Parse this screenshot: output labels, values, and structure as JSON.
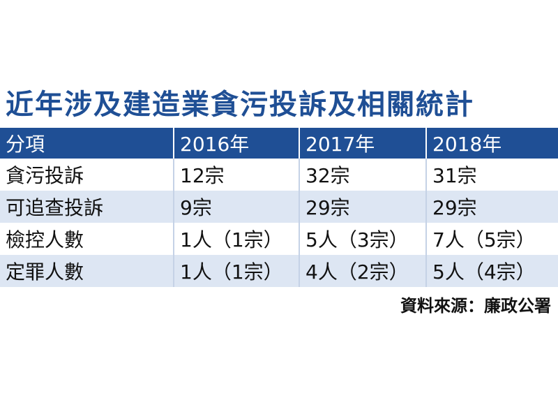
{
  "title": "近年涉及建造業貪污投訴及相關統計",
  "table": {
    "headers": [
      "分項",
      "2016年",
      "2017年",
      "2018年"
    ],
    "rows": [
      [
        "貪污投訴",
        "12宗",
        "32宗",
        "31宗"
      ],
      [
        "可追查投訴",
        "9宗",
        "29宗",
        "29宗"
      ],
      [
        "檢控人數",
        "1人（1宗）",
        "5人（3宗）",
        "7人（5宗）"
      ],
      [
        "定罪人數",
        "1人（1宗）",
        "4人（2宗）",
        "5人（4宗）"
      ]
    ]
  },
  "source": "資料來源：廉政公署",
  "colors": {
    "header_bg": "#1f4f95",
    "title": "#1f4f95",
    "stripe": "#dde6f3"
  }
}
